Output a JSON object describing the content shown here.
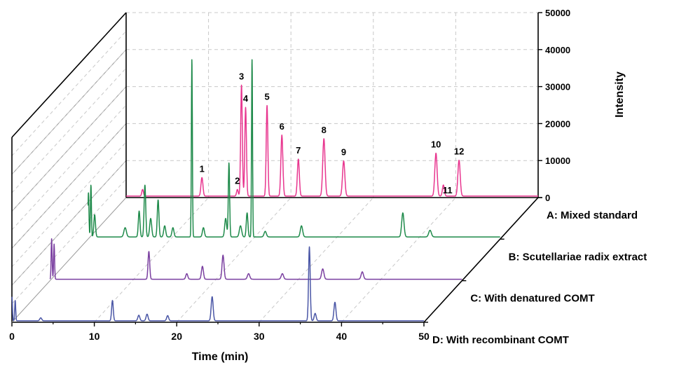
{
  "chart_data": {
    "type": "line",
    "title": "",
    "xlabel": "Time (min)",
    "zlabel": "Intensity",
    "xlim": [
      0,
      50
    ],
    "zlim": [
      0,
      50000
    ],
    "x_ticks": [
      "0",
      "10",
      "20",
      "30",
      "40",
      "50"
    ],
    "z_ticks": [
      "0",
      "10000",
      "20000",
      "30000",
      "40000",
      "50000"
    ],
    "grid": true,
    "view": "3d-waterfall",
    "series": [
      {
        "name": "A: Mixed standard",
        "color": "#e8368f",
        "baseline": 400,
        "peaks": [
          {
            "t": 2.0,
            "h": 1800,
            "w": 0.1
          },
          {
            "t": 9.2,
            "h": 5000,
            "w": 0.12,
            "label": "1"
          },
          {
            "t": 13.5,
            "h": 1800,
            "w": 0.1,
            "label": "2"
          },
          {
            "t": 14.0,
            "h": 30000,
            "w": 0.1,
            "label": "3"
          },
          {
            "t": 14.5,
            "h": 24000,
            "w": 0.1,
            "label": "4"
          },
          {
            "t": 17.1,
            "h": 24500,
            "w": 0.1,
            "label": "5"
          },
          {
            "t": 18.9,
            "h": 16500,
            "w": 0.12,
            "label": "6"
          },
          {
            "t": 20.9,
            "h": 10000,
            "w": 0.12,
            "label": "7"
          },
          {
            "t": 24.0,
            "h": 15500,
            "w": 0.14,
            "label": "8"
          },
          {
            "t": 26.4,
            "h": 9500,
            "w": 0.14,
            "label": "9"
          },
          {
            "t": 37.6,
            "h": 11600,
            "w": 0.14,
            "label": "10"
          },
          {
            "t": 38.5,
            "h": 3000,
            "w": 0.12,
            "label": "11"
          },
          {
            "t": 40.4,
            "h": 9700,
            "w": 0.14,
            "label": "12"
          }
        ]
      },
      {
        "name": "B: Scutellariae radix extract",
        "color": "#1e8a4a",
        "baseline": 600,
        "peaks": [
          {
            "t": 0.05,
            "h": 12000,
            "w": 0.06
          },
          {
            "t": 0.35,
            "h": 14000,
            "w": 0.06
          },
          {
            "t": 0.8,
            "h": 6000,
            "w": 0.1
          },
          {
            "t": 4.5,
            "h": 2500,
            "w": 0.15
          },
          {
            "t": 6.2,
            "h": 7000,
            "w": 0.1
          },
          {
            "t": 6.9,
            "h": 14000,
            "w": 0.1
          },
          {
            "t": 7.6,
            "h": 5000,
            "w": 0.12
          },
          {
            "t": 8.5,
            "h": 10000,
            "w": 0.1
          },
          {
            "t": 9.3,
            "h": 3000,
            "w": 0.12
          },
          {
            "t": 10.3,
            "h": 2500,
            "w": 0.12
          },
          {
            "t": 12.6,
            "h": 48000,
            "w": 0.06
          },
          {
            "t": 14.0,
            "h": 2500,
            "w": 0.12
          },
          {
            "t": 16.7,
            "h": 5000,
            "w": 0.12
          },
          {
            "t": 17.1,
            "h": 20000,
            "w": 0.08
          },
          {
            "t": 18.5,
            "h": 3000,
            "w": 0.14
          },
          {
            "t": 19.3,
            "h": 6500,
            "w": 0.1
          },
          {
            "t": 19.9,
            "h": 48000,
            "w": 0.06
          },
          {
            "t": 21.5,
            "h": 1500,
            "w": 0.14
          },
          {
            "t": 25.9,
            "h": 3000,
            "w": 0.14
          },
          {
            "t": 38.2,
            "h": 6500,
            "w": 0.14
          },
          {
            "t": 41.5,
            "h": 1800,
            "w": 0.16
          }
        ]
      },
      {
        "name": "C: With denatured COMT",
        "color": "#7a3fa0",
        "baseline": 400,
        "peaks": [
          {
            "t": 0.2,
            "h": 11000,
            "w": 0.06
          },
          {
            "t": 0.5,
            "h": 9500,
            "w": 0.06
          },
          {
            "t": 12.0,
            "h": 7500,
            "w": 0.1
          },
          {
            "t": 16.6,
            "h": 1500,
            "w": 0.12
          },
          {
            "t": 18.5,
            "h": 3500,
            "w": 0.12
          },
          {
            "t": 21.0,
            "h": 6500,
            "w": 0.12
          },
          {
            "t": 24.1,
            "h": 1500,
            "w": 0.14
          },
          {
            "t": 28.2,
            "h": 1500,
            "w": 0.14
          },
          {
            "t": 33.1,
            "h": 2800,
            "w": 0.14
          },
          {
            "t": 37.9,
            "h": 2000,
            "w": 0.14
          }
        ]
      },
      {
        "name": "D: With recombinant COMT",
        "color": "#4a56a6",
        "baseline": 400,
        "peaks": [
          {
            "t": 0.0,
            "h": 6500,
            "w": 0.06
          },
          {
            "t": 0.4,
            "h": 5500,
            "w": 0.06
          },
          {
            "t": 3.5,
            "h": 800,
            "w": 0.12
          },
          {
            "t": 12.2,
            "h": 5500,
            "w": 0.1
          },
          {
            "t": 15.4,
            "h": 1500,
            "w": 0.12
          },
          {
            "t": 16.4,
            "h": 1800,
            "w": 0.12
          },
          {
            "t": 18.9,
            "h": 1400,
            "w": 0.12
          },
          {
            "t": 24.3,
            "h": 6500,
            "w": 0.12
          },
          {
            "t": 36.1,
            "h": 20000,
            "w": 0.1
          },
          {
            "t": 36.8,
            "h": 2000,
            "w": 0.12
          },
          {
            "t": 39.2,
            "h": 5000,
            "w": 0.12
          }
        ]
      }
    ]
  }
}
